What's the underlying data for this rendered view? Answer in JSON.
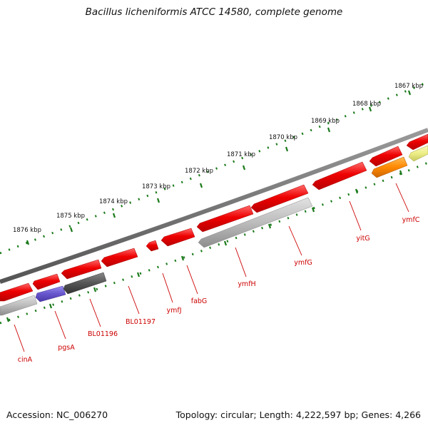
{
  "title": "Bacillus licheniformis ATCC 14580, complete genome",
  "footer": {
    "accession": "Accession: NC_006270",
    "stats": "Topology: circular; Length: 4,222,597 bp; Genes: 4,266"
  },
  "colors": {
    "gene_red": "#ee0000",
    "gene_gray": "#bbbbbb",
    "gene_darkgray": "#555555",
    "gene_blue": "#6655cc",
    "gene_orange": "#ff8800",
    "gene_yellow": "#eeee88",
    "backbone": "#777777",
    "ticks": "#1a7a1a",
    "label": "#cc0000"
  },
  "scale_labels": [
    "1867 kbp",
    "1868 kbp",
    "1869 kbp",
    "1870 kbp",
    "1871 kbp",
    "1872 kbp",
    "1873 kbp",
    "1874 kbp",
    "1875 kbp",
    "1876 kbp"
  ],
  "gene_labels": [
    "ymfC",
    "yitG",
    "ymfG",
    "ymfH",
    "fabG",
    "ymfJ",
    "BL01197",
    "BL01196",
    "pgsA",
    "cinA"
  ]
}
